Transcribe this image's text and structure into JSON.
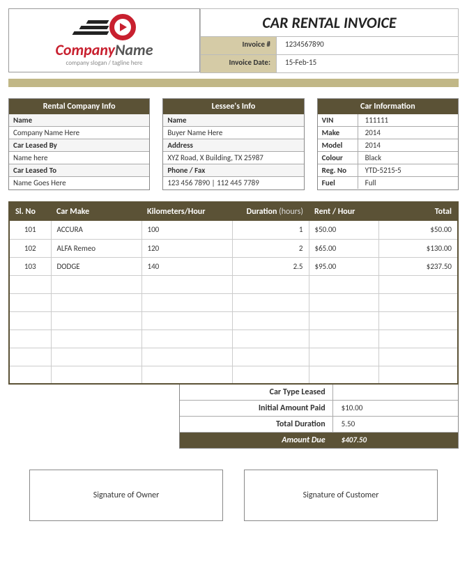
{
  "logo": {
    "company": "Company",
    "name": "Name",
    "tagline": "company slogan / tagline here"
  },
  "title": "CAR RENTAL INVOICE",
  "meta": {
    "invoice_no_label": "Invoice #",
    "invoice_no": "1234567890",
    "invoice_date_label": "Invoice Date:",
    "invoice_date": "15-Feb-15"
  },
  "rental_info": {
    "header": "Rental Company Info",
    "rows": [
      {
        "label": "Name",
        "bold": true
      },
      {
        "label": "Company Name Here"
      },
      {
        "label": "Car Leased By",
        "bold": true
      },
      {
        "label": "Name here"
      },
      {
        "label": "Car Leased To",
        "bold": true
      },
      {
        "label": "Name Goes Here"
      }
    ]
  },
  "lessee_info": {
    "header": "Lessee's Info",
    "rows": [
      {
        "label": "Name",
        "bold": true
      },
      {
        "label": "Buyer Name Here"
      },
      {
        "label": "Address",
        "bold": true
      },
      {
        "label": "XYZ Road, X Building, TX 25987"
      },
      {
        "label": "Phone / Fax",
        "bold": true
      },
      {
        "label": "123 456 7890 | 112 445 7789"
      }
    ]
  },
  "car_info": {
    "header": "Car Information",
    "kv": [
      {
        "k": "VIN",
        "v": "111111"
      },
      {
        "k": "Make",
        "v": "2014"
      },
      {
        "k": "Model",
        "v": "2014"
      },
      {
        "k": "Colour",
        "v": "Black"
      },
      {
        "k": "Reg. No",
        "v": "YTD-5215-5"
      },
      {
        "k": "Fuel",
        "v": "Full"
      }
    ]
  },
  "table": {
    "headers": {
      "sl": "Sl. No",
      "make": "Car Make",
      "km": "Kilometers/Hour",
      "dur": "Duration",
      "dur_unit": "(hours)",
      "rent": "Rent / Hour",
      "total": "Total"
    },
    "rows": [
      {
        "sl": "101",
        "make": "ACCURA",
        "km": "100",
        "dur": "1",
        "rent": "$50.00",
        "total": "$50.00"
      },
      {
        "sl": "102",
        "make": "ALFA Remeo",
        "km": "120",
        "dur": "2",
        "rent": "$65.00",
        "total": "$130.00"
      },
      {
        "sl": "103",
        "make": "DODGE",
        "km": "140",
        "dur": "2.5",
        "rent": "$95.00",
        "total": "$237.50"
      }
    ],
    "empty_rows": 6
  },
  "summary": {
    "rows": [
      {
        "k": "Car Type Leased",
        "v": ""
      },
      {
        "k": "Initial Amount Paid",
        "v": "$10.00"
      },
      {
        "k": "Total Duration",
        "v": "5.50"
      }
    ],
    "final": {
      "k": "Amount Due",
      "v": "$407.50"
    }
  },
  "signatures": {
    "owner": "Signature of Owner",
    "customer": "Signature of Customer"
  },
  "colors": {
    "header_bg": "#5b5236",
    "tan": "#d5cba6",
    "red": "#c8202f"
  }
}
